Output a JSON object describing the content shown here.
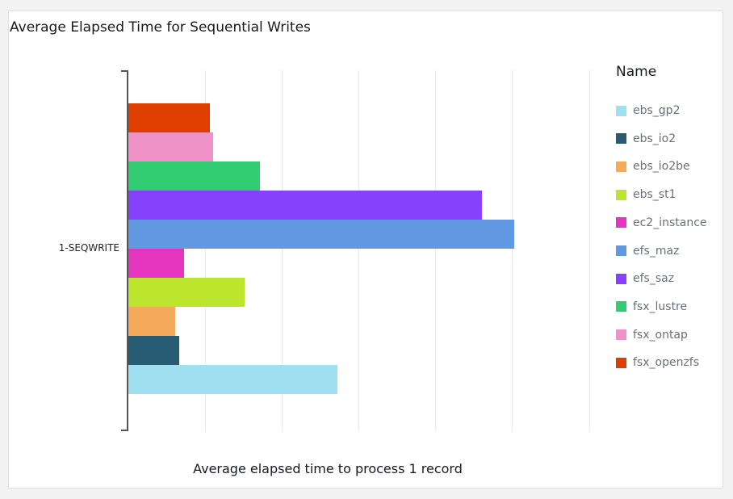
{
  "chart_data": {
    "type": "bar",
    "orientation": "horizontal",
    "title": "Average Elapsed Time for Sequential Writes",
    "xlabel": "Average elapsed time to process 1 record",
    "ylabel": "",
    "categories": [
      "1-SEQWRITE"
    ],
    "grid": true,
    "x_tick_labels_visible": false,
    "gridline_units": 6,
    "legend_title": "Name",
    "legend_position": "right",
    "series": [
      {
        "name": "ebs_gp2",
        "color": "#a0dff0",
        "values": [
          2.73
        ]
      },
      {
        "name": "ebs_io2",
        "color": "#285b74",
        "values": [
          0.66
        ]
      },
      {
        "name": "ebs_io2be",
        "color": "#f6ab5a",
        "values": [
          0.61
        ]
      },
      {
        "name": "ebs_st1",
        "color": "#bce62d",
        "values": [
          1.52
        ]
      },
      {
        "name": "ec2_instance",
        "color": "#e535be",
        "values": [
          0.73
        ]
      },
      {
        "name": "efs_maz",
        "color": "#6399e2",
        "values": [
          5.03
        ]
      },
      {
        "name": "efs_saz",
        "color": "#8541fc",
        "values": [
          4.61
        ]
      },
      {
        "name": "fsx_lustre",
        "color": "#32cc72",
        "values": [
          1.72
        ]
      },
      {
        "name": "fsx_ontap",
        "color": "#ee92c8",
        "values": [
          1.1
        ]
      },
      {
        "name": "fsx_openzfs",
        "color": "#de3e00",
        "values": [
          1.06
        ]
      }
    ]
  },
  "legend": {
    "title": "Name",
    "items": [
      {
        "label": "ebs_gp2",
        "color": "#a0dff0"
      },
      {
        "label": "ebs_io2",
        "color": "#285b74"
      },
      {
        "label": "ebs_io2be",
        "color": "#f6ab5a"
      },
      {
        "label": "ebs_st1",
        "color": "#bce62d"
      },
      {
        "label": "ec2_instance",
        "color": "#e535be"
      },
      {
        "label": "efs_maz",
        "color": "#6399e2"
      },
      {
        "label": "efs_saz",
        "color": "#8541fc"
      },
      {
        "label": "fsx_lustre",
        "color": "#32cc72"
      },
      {
        "label": "fsx_ontap",
        "color": "#ee92c8"
      },
      {
        "label": "fsx_openzfs",
        "color": "#de3e00"
      }
    ]
  }
}
